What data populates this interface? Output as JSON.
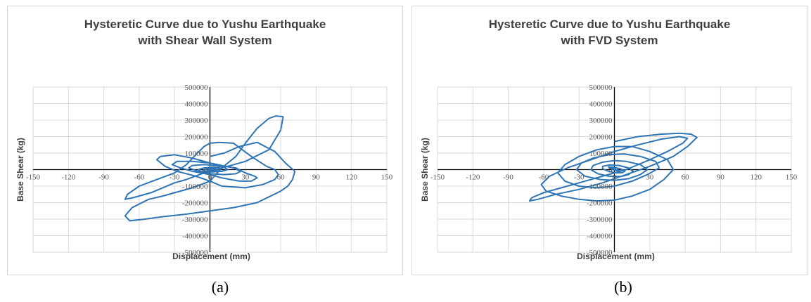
{
  "captions": [
    "(a)",
    "(b)"
  ],
  "chart_data": [
    {
      "type": "line",
      "title_lines": [
        "Hysteretic Curve due to Yushu Earthquake",
        "with Shear Wall System"
      ],
      "xlabel": "Displacement (mm)",
      "ylabel": "Base Shear (kg)",
      "xlim": [
        -150,
        150
      ],
      "ylim": [
        -500000,
        500000
      ],
      "xticks": [
        -150,
        -120,
        -90,
        -60,
        -30,
        0,
        30,
        60,
        90,
        120,
        150
      ],
      "yticks": [
        500000,
        400000,
        300000,
        200000,
        100000,
        0,
        -100000,
        -200000,
        -300000,
        -400000,
        -500000
      ],
      "grid": true,
      "line_color": "#2E75B6",
      "series": [
        {
          "x": [
            0,
            12,
            25,
            40,
            55,
            64,
            72,
            70,
            66,
            60,
            40,
            20,
            0,
            -20,
            -40,
            -55,
            -68,
            -72,
            -66,
            -52,
            -40,
            -30,
            -15,
            0,
            10,
            22,
            30,
            40,
            50,
            56,
            62,
            60,
            50,
            30,
            10,
            -5,
            -20,
            -30,
            -40,
            -50,
            -65,
            -72,
            -70,
            -60,
            -45,
            -30,
            -20,
            -12,
            -5,
            0,
            8,
            20,
            35,
            48,
            55,
            58,
            55,
            45,
            30,
            10,
            0,
            -12,
            -28,
            -38,
            -45,
            -42,
            -30,
            -15,
            0,
            12,
            22,
            30,
            38,
            40,
            35,
            25,
            10,
            0,
            -15,
            -25,
            -32,
            -28,
            -15,
            0,
            10,
            20,
            26,
            22,
            12,
            0,
            -10,
            -18,
            -15,
            -5,
            5,
            12,
            15,
            10,
            0,
            -8,
            -10,
            -5,
            3,
            8,
            10,
            5,
            -3,
            -6,
            -2,
            3,
            5,
            1,
            -2,
            0
          ],
          "y": [
            80000,
            100000,
            140000,
            165000,
            110000,
            40000,
            -10000,
            -60000,
            -100000,
            -130000,
            -200000,
            -230000,
            -250000,
            -270000,
            -285000,
            -300000,
            -310000,
            -280000,
            -230000,
            -180000,
            -160000,
            -140000,
            -110000,
            -70000,
            10000,
            80000,
            160000,
            250000,
            310000,
            325000,
            320000,
            240000,
            120000,
            50000,
            10000,
            -20000,
            -60000,
            -80000,
            -110000,
            -140000,
            -170000,
            -180000,
            -150000,
            -100000,
            -60000,
            -20000,
            30000,
            90000,
            140000,
            160000,
            165000,
            160000,
            80000,
            20000,
            0,
            -30000,
            -60000,
            -90000,
            -110000,
            -100000,
            -70000,
            -40000,
            -10000,
            20000,
            60000,
            80000,
            90000,
            70000,
            40000,
            20000,
            10000,
            -20000,
            -40000,
            -50000,
            -70000,
            -70000,
            -50000,
            -30000,
            -10000,
            10000,
            30000,
            50000,
            50000,
            40000,
            25000,
            10000,
            -10000,
            -25000,
            -30000,
            -25000,
            -10000,
            10000,
            25000,
            30000,
            25000,
            15000,
            0,
            -10000,
            -15000,
            -10000,
            0,
            10000,
            15000,
            12000,
            5000,
            -5000,
            -10000,
            -5000,
            5000,
            8000,
            5000,
            0,
            -3000,
            0
          ]
        }
      ]
    },
    {
      "type": "line",
      "title_lines": [
        "Hysteretic Curve due to Yushu Earthquake",
        "with FVD System"
      ],
      "xlabel": "Displacement (mm)",
      "ylabel": "Base Shear (kg)",
      "xlim": [
        -150,
        150
      ],
      "ylim": [
        -500000,
        500000
      ],
      "xticks": [
        -150,
        -120,
        -90,
        -60,
        -30,
        0,
        30,
        60,
        90,
        120,
        150
      ],
      "yticks": [
        500000,
        400000,
        300000,
        200000,
        100000,
        0,
        -100000,
        -200000,
        -300000,
        -400000,
        -500000
      ],
      "grid": true,
      "line_color": "#2E75B6",
      "series": [
        {
          "x": [
            0,
            20,
            40,
            55,
            65,
            70,
            62,
            50,
            30,
            10,
            -10,
            -30,
            -50,
            -65,
            -72,
            -70,
            -60,
            -45,
            -30,
            -10,
            10,
            30,
            45,
            58,
            62,
            55,
            40,
            20,
            0,
            -20,
            -40,
            -55,
            -62,
            -58,
            -45,
            -30,
            -15,
            0,
            15,
            30,
            42,
            50,
            45,
            30,
            15,
            0,
            -15,
            -30,
            -42,
            -48,
            -42,
            -30,
            -15,
            0,
            15,
            28,
            38,
            35,
            22,
            8,
            -5,
            -18,
            -28,
            -32,
            -25,
            -12,
            0,
            12,
            22,
            28,
            22,
            10,
            0,
            -10,
            -18,
            -20,
            -14,
            -5,
            5,
            12,
            16,
            12,
            4,
            -4,
            -10,
            -10,
            -5,
            2,
            7,
            9,
            5,
            -1,
            -5,
            -4,
            0,
            4,
            5,
            2,
            -2,
            -3,
            0,
            2,
            1,
            0
          ],
          "y": [
            170000,
            200000,
            215000,
            220000,
            215000,
            195000,
            140000,
            80000,
            20000,
            -30000,
            -80000,
            -120000,
            -150000,
            -180000,
            -190000,
            -170000,
            -140000,
            -110000,
            -80000,
            -40000,
            0,
            60000,
            110000,
            160000,
            190000,
            200000,
            185000,
            150000,
            110000,
            60000,
            10000,
            -40000,
            -90000,
            -130000,
            -160000,
            -180000,
            -190000,
            -185000,
            -160000,
            -120000,
            -60000,
            0,
            60000,
            110000,
            140000,
            140000,
            120000,
            80000,
            30000,
            -20000,
            -70000,
            -100000,
            -110000,
            -100000,
            -70000,
            -30000,
            10000,
            50000,
            80000,
            95000,
            90000,
            70000,
            40000,
            0,
            -40000,
            -60000,
            -65000,
            -55000,
            -30000,
            0,
            30000,
            50000,
            55000,
            45000,
            25000,
            0,
            -25000,
            -40000,
            -42000,
            -30000,
            -10000,
            10000,
            25000,
            28000,
            20000,
            5000,
            -10000,
            -20000,
            -18000,
            -8000,
            5000,
            15000,
            16000,
            8000,
            -3000,
            -10000,
            -8000,
            0,
            6000,
            8000,
            4000,
            -2000,
            -3000,
            0
          ]
        }
      ]
    }
  ]
}
